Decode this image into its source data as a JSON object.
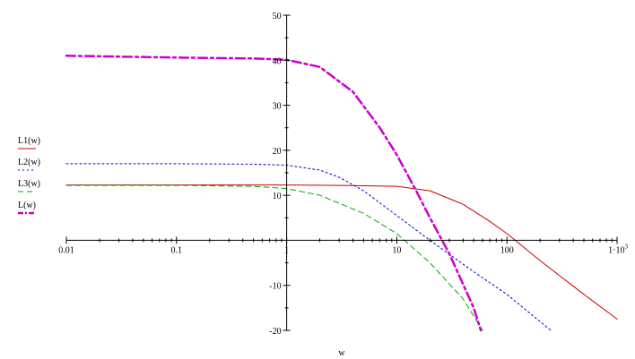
{
  "chart_data": {
    "type": "line",
    "xscale": "log",
    "xlabel": "w",
    "ylabel": "",
    "xlim": [
      0.01,
      1000
    ],
    "ylim": [
      -20,
      50
    ],
    "x_ticks": [
      {
        "value": 0.01,
        "label": "0.01"
      },
      {
        "value": 0.1,
        "label": "0.1"
      },
      {
        "value": 1,
        "label": "1"
      },
      {
        "value": 10,
        "label": "10"
      },
      {
        "value": 100,
        "label": "100"
      },
      {
        "value": 1000,
        "label": "1·10",
        "sup": "3"
      }
    ],
    "y_ticks": [
      {
        "value": 50,
        "label": "50"
      },
      {
        "value": 40,
        "label": "40"
      },
      {
        "value": 30,
        "label": "30"
      },
      {
        "value": 20,
        "label": "20"
      },
      {
        "value": 10,
        "label": "10"
      },
      {
        "value": -10,
        "label": "-10"
      },
      {
        "value": -20,
        "label": "-20"
      }
    ],
    "legend_position": "left",
    "grid": false,
    "series": [
      {
        "name": "L1(w)",
        "color": "#cc0000",
        "style": "solid",
        "x": [
          0.01,
          0.1,
          1,
          3,
          10,
          20,
          40,
          70,
          100,
          200,
          500,
          1000
        ],
        "y": [
          12.3,
          12.3,
          12.3,
          12.2,
          12.0,
          11.0,
          8.0,
          4.2,
          1.5,
          -4.5,
          -12.0,
          -17.5
        ]
      },
      {
        "name": "L2(w)",
        "color": "#0000cc",
        "style": "dotted",
        "x": [
          0.01,
          0.1,
          0.5,
          1,
          2,
          3,
          5,
          10,
          20,
          50,
          100,
          250
        ],
        "y": [
          17.0,
          17.0,
          16.9,
          16.7,
          15.6,
          14.0,
          11.0,
          5.5,
          0.0,
          -7.0,
          -12.0,
          -20.0
        ]
      },
      {
        "name": "L3(w)",
        "color": "#00aa00",
        "style": "dashed",
        "x": [
          0.01,
          0.1,
          0.5,
          1,
          2,
          5,
          10,
          20,
          40,
          60
        ],
        "y": [
          12.2,
          12.2,
          12.0,
          11.5,
          10.0,
          6.0,
          1.5,
          -5.0,
          -13.0,
          -20.0
        ]
      },
      {
        "name": "L(w)",
        "color": "#cc00cc",
        "style": "dash-dot",
        "x": [
          0.01,
          0.1,
          0.5,
          1,
          2,
          4,
          7,
          10,
          15,
          20,
          30,
          50,
          58
        ],
        "y": [
          41.0,
          40.6,
          40.4,
          40.1,
          38.5,
          33.0,
          25.0,
          19.0,
          11.0,
          5.0,
          -3.0,
          -15.0,
          -20.0
        ]
      }
    ]
  }
}
